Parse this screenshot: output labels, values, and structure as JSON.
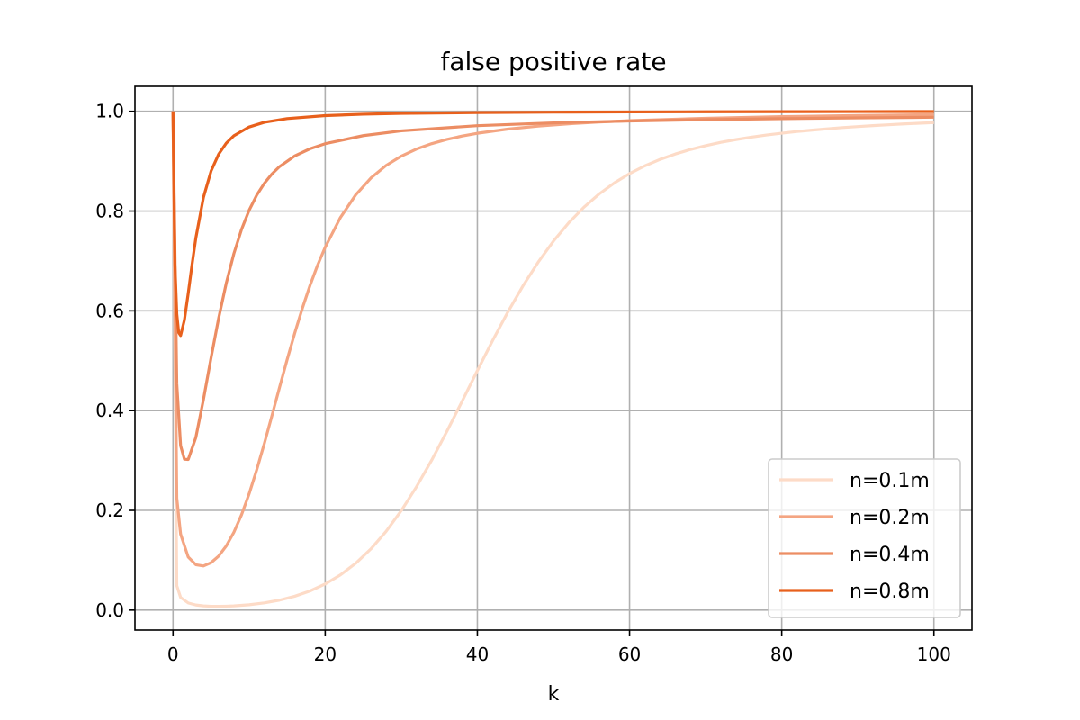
{
  "chart_data": {
    "type": "line",
    "title": "false positive rate",
    "xlabel": "k",
    "ylabel": "",
    "xlim": [
      -5,
      105
    ],
    "ylim": [
      -0.04,
      1.05
    ],
    "grid": true,
    "legend_position": "lower-right",
    "x_ticks": [
      {
        "value": 0,
        "label": "0"
      },
      {
        "value": 20,
        "label": "20"
      },
      {
        "value": 40,
        "label": "40"
      },
      {
        "value": 60,
        "label": "60"
      },
      {
        "value": 80,
        "label": "80"
      },
      {
        "value": 100,
        "label": "100"
      }
    ],
    "y_ticks": [
      {
        "value": 0.0,
        "label": "0.0"
      },
      {
        "value": 0.2,
        "label": "0.2"
      },
      {
        "value": 0.4,
        "label": "0.4"
      },
      {
        "value": 0.6,
        "label": "0.6"
      },
      {
        "value": 0.8,
        "label": "0.8"
      },
      {
        "value": 1.0,
        "label": "1.0"
      }
    ],
    "series": [
      {
        "name": "n=0.1m",
        "color": "#fddbc7",
        "x": [
          0,
          0.5,
          1,
          2,
          3,
          4,
          5,
          6,
          7,
          8,
          10,
          12,
          14,
          16,
          18,
          20,
          22,
          24,
          26,
          28,
          30,
          32,
          34,
          36,
          38,
          40,
          42,
          44,
          46,
          48,
          50,
          52,
          54,
          56,
          58,
          60,
          62,
          64,
          66,
          68,
          70,
          72,
          74,
          76,
          78,
          80,
          82,
          84,
          86,
          88,
          90,
          92,
          94,
          96,
          98,
          100
        ],
        "values": [
          1.0,
          0.0488,
          0.0254,
          0.0144,
          0.0103,
          0.0085,
          0.0077,
          0.0076,
          0.0079,
          0.0085,
          0.0108,
          0.0145,
          0.02,
          0.0278,
          0.0383,
          0.0523,
          0.0705,
          0.0937,
          0.1226,
          0.1578,
          0.1994,
          0.2473,
          0.3007,
          0.3585,
          0.4189,
          0.4802,
          0.5403,
          0.5974,
          0.6502,
          0.6977,
          0.7398,
          0.7763,
          0.8076,
          0.8341,
          0.8564,
          0.875,
          0.8905,
          0.9035,
          0.9143,
          0.9234,
          0.9311,
          0.9377,
          0.9433,
          0.9482,
          0.9524,
          0.9561,
          0.9594,
          0.9623,
          0.9649,
          0.9673,
          0.9694,
          0.9713,
          0.973,
          0.9746,
          0.976,
          0.9774
        ]
      },
      {
        "name": "n=0.2m",
        "color": "#f4a582",
        "x": [
          0,
          0.5,
          1,
          2,
          3,
          4,
          5,
          6,
          7,
          8,
          9,
          10,
          11,
          12,
          13,
          14,
          15,
          16,
          17,
          18,
          19,
          20,
          22,
          24,
          26,
          28,
          30,
          32,
          34,
          36,
          38,
          40,
          44,
          48,
          52,
          56,
          60,
          70,
          80,
          90,
          100
        ],
        "values": [
          1.0,
          0.2245,
          0.1523,
          0.1063,
          0.091,
          0.0885,
          0.0951,
          0.1084,
          0.1286,
          0.1561,
          0.1909,
          0.233,
          0.2812,
          0.334,
          0.3897,
          0.4464,
          0.5021,
          0.5555,
          0.6052,
          0.6506,
          0.6914,
          0.7274,
          0.7869,
          0.8322,
          0.8661,
          0.8913,
          0.9101,
          0.9243,
          0.9351,
          0.9436,
          0.9504,
          0.9559,
          0.9643,
          0.9703,
          0.9749,
          0.9784,
          0.9812,
          0.986,
          0.9893,
          0.9916,
          0.9933
        ]
      },
      {
        "name": "n=0.4m",
        "color": "#ec8d63",
        "x": [
          0,
          0.5,
          1,
          1.5,
          2,
          3,
          4,
          5,
          6,
          7,
          8,
          9,
          10,
          11,
          12,
          13,
          14,
          16,
          18,
          20,
          25,
          30,
          40,
          50,
          60,
          70,
          80,
          90,
          100
        ],
        "values": [
          1.0,
          0.4539,
          0.3296,
          0.3026,
          0.302,
          0.3461,
          0.4221,
          0.5058,
          0.5853,
          0.6555,
          0.7147,
          0.7629,
          0.8014,
          0.8318,
          0.8556,
          0.8743,
          0.8891,
          0.9104,
          0.9248,
          0.935,
          0.9512,
          0.9608,
          0.9712,
          0.9768,
          0.9805,
          0.9832,
          0.9852,
          0.9868,
          0.9881
        ]
      },
      {
        "name": "n=0.8m",
        "color": "#e8601c",
        "x": [
          0,
          0.25,
          0.5,
          0.75,
          1,
          1.5,
          2,
          2.5,
          3,
          4,
          5,
          6,
          7,
          8,
          10,
          12,
          15,
          20,
          25,
          30,
          40,
          50,
          60,
          70,
          80,
          90,
          100
        ],
        "values": [
          1.0,
          0.694,
          0.5936,
          0.5564,
          0.5505,
          0.5814,
          0.635,
          0.6926,
          0.7458,
          0.8273,
          0.8801,
          0.914,
          0.9361,
          0.951,
          0.9685,
          0.9779,
          0.9854,
          0.9914,
          0.9942,
          0.9958,
          0.9974,
          0.9982,
          0.9987,
          0.999,
          0.9992,
          0.9994,
          0.9995
        ]
      }
    ]
  }
}
